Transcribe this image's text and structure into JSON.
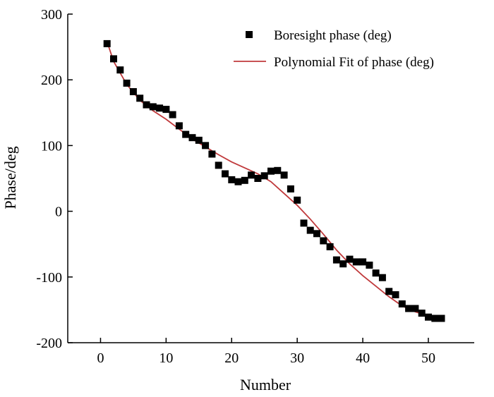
{
  "chart_data": {
    "type": "scatter",
    "title": "",
    "xlabel": "Number",
    "ylabel": "Phase/deg",
    "xlim": [
      -5,
      57
    ],
    "ylim": [
      -200,
      300
    ],
    "x_ticks": [
      0,
      10,
      20,
      30,
      40,
      50
    ],
    "y_ticks": [
      -200,
      -100,
      0,
      100,
      200,
      300
    ],
    "x_tick_labels": [
      "0",
      "10",
      "20",
      "30",
      "40",
      "50"
    ],
    "y_tick_labels": [
      "-200",
      "-100",
      "0",
      "100",
      "200",
      "300"
    ],
    "grid": false,
    "legend_position": "top-right",
    "series": [
      {
        "name": "Boresight phase (deg)",
        "style": "markers",
        "marker": "square",
        "color": "#000000",
        "x": [
          1,
          2,
          3,
          4,
          5,
          6,
          7,
          8,
          9,
          10,
          11,
          12,
          13,
          14,
          15,
          16,
          17,
          18,
          19,
          20,
          21,
          22,
          23,
          24,
          25,
          26,
          27,
          28,
          29,
          30,
          31,
          32,
          33,
          34,
          35,
          36,
          37,
          38,
          39,
          40,
          41,
          42,
          43,
          44,
          45,
          46,
          47,
          48,
          49,
          50,
          51,
          52
        ],
        "y": [
          255,
          232,
          215,
          195,
          182,
          172,
          162,
          159,
          157,
          155,
          147,
          130,
          117,
          112,
          108,
          100,
          87,
          70,
          57,
          48,
          45,
          47,
          55,
          50,
          54,
          61,
          62,
          55,
          34,
          17,
          -18,
          -29,
          -34,
          -45,
          -54,
          -74,
          -80,
          -73,
          -77,
          -77,
          -82,
          -94,
          -101,
          -122,
          -127,
          -141,
          -148,
          -148,
          -155,
          -161,
          -163,
          -163
        ]
      },
      {
        "name": "Polynomial Fit of phase (deg)",
        "style": "line",
        "color": "#c0393b",
        "x": [
          1,
          2,
          4,
          6,
          8,
          10,
          12,
          14,
          16,
          18,
          20,
          22,
          24,
          26,
          28,
          30,
          32,
          34,
          36,
          38,
          40,
          42,
          44,
          46,
          48,
          50,
          52
        ],
        "y": [
          258,
          228,
          193,
          169,
          153,
          140,
          125,
          110,
          98,
          86,
          75,
          66,
          57,
          45,
          27,
          9,
          -12,
          -35,
          -59,
          -80,
          -98,
          -114,
          -130,
          -144,
          -153,
          -159,
          -163
        ]
      }
    ]
  }
}
